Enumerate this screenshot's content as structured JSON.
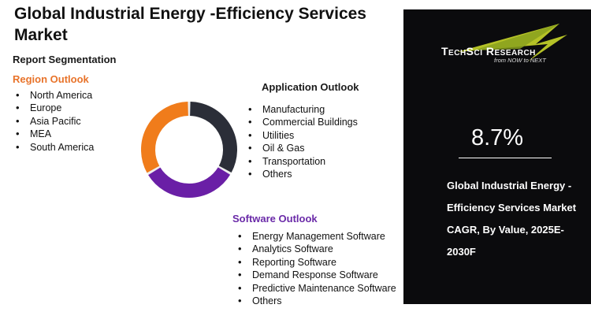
{
  "title": "Global Industrial Energy -Efficiency Services Market",
  "segmentation_heading": "Report Segmentation",
  "region": {
    "title": "Region Outlook",
    "items": [
      "North America",
      "Europe",
      "Asia Pacific",
      "MEA",
      "South America"
    ]
  },
  "application": {
    "title": "Application Outlook",
    "items": [
      "Manufacturing",
      "Commercial Buildings",
      "Utilities",
      "Oil & Gas",
      "Transportation",
      "Others"
    ]
  },
  "software": {
    "title": "Software Outlook",
    "items": [
      "Energy Management Software",
      "Analytics Software",
      "Reporting Software",
      "Demand Response Software",
      "Predictive Maintenance Software",
      "Others"
    ]
  },
  "donut": {
    "segments": [
      {
        "color": "#2b2e38",
        "fraction": 0.333
      },
      {
        "color": "#6a1fa6",
        "fraction": 0.333
      },
      {
        "color": "#f07c1b",
        "fraction": 0.334
      }
    ]
  },
  "panel": {
    "logo_text": "TechSci Research",
    "logo_tagline": "from NOW to NEXT",
    "logo_icon": "arrow-chevron-icon",
    "cagr_value": "8.7%",
    "caption": "Global Industrial Energy -Efficiency Services Market CAGR, By Value, 2025E-2030F",
    "background": "#0b0b0d",
    "accent": "#c8d62a"
  }
}
